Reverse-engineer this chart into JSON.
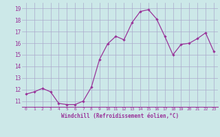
{
  "x": [
    0,
    1,
    2,
    3,
    4,
    5,
    6,
    7,
    8,
    9,
    10,
    11,
    12,
    13,
    14,
    15,
    16,
    17,
    18,
    19,
    20,
    21,
    22,
    23
  ],
  "y": [
    11.6,
    11.8,
    12.1,
    11.8,
    10.8,
    10.7,
    10.7,
    11.0,
    12.2,
    14.6,
    15.95,
    16.6,
    16.3,
    17.8,
    18.75,
    18.9,
    18.1,
    16.6,
    15.0,
    15.9,
    16.0,
    16.4,
    16.9,
    15.3
  ],
  "line_color": "#993399",
  "marker": "D",
  "marker_size": 2.2,
  "bg_color": "#cce8e8",
  "grid_color": "#aaaacc",
  "xlabel": "Windchill (Refroidissement éolien,°C)",
  "xlabel_color": "#993399",
  "tick_color": "#993399",
  "ylim": [
    10.5,
    19.5
  ],
  "yticks": [
    11,
    12,
    13,
    14,
    15,
    16,
    17,
    18,
    19
  ],
  "xticks": [
    0,
    1,
    2,
    3,
    4,
    5,
    6,
    7,
    8,
    9,
    10,
    11,
    12,
    13,
    14,
    15,
    16,
    17,
    18,
    19,
    20,
    21,
    22,
    23
  ]
}
